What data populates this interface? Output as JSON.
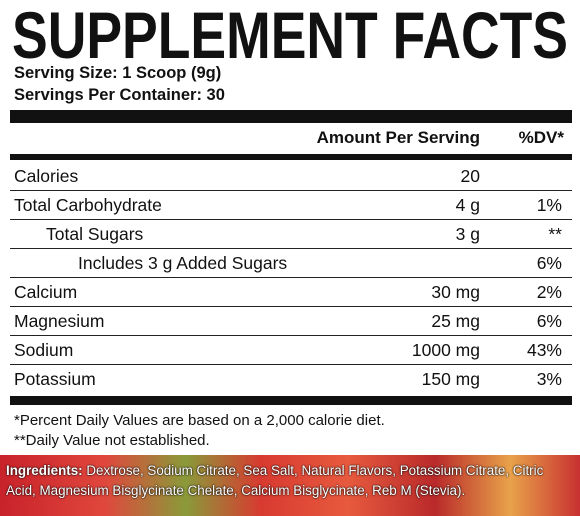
{
  "header": {
    "title": "SUPPLEMENT FACTS",
    "serving_size": "Serving Size: 1 Scoop (9g)",
    "servings_per_container": "Servings Per Container: 30"
  },
  "table": {
    "columns": [
      "Amount Per Serving",
      "%DV*"
    ],
    "rows": [
      {
        "name": "Calories",
        "amount": "20"
      },
      {
        "name": "Total Carbohydrate",
        "amount": "4 g",
        "dv": "1%"
      },
      {
        "name": "Total Sugars",
        "amount": "3 g",
        "dv": "**"
      },
      {
        "name": "Includes 3 g Added Sugars",
        "dv": "6%"
      },
      {
        "name": "Calcium",
        "amount": "30 mg",
        "dv": "2%"
      },
      {
        "name": "Magnesium",
        "amount": "25 mg",
        "dv": "6%"
      },
      {
        "name": "Sodium",
        "amount": "1000 mg",
        "dv": "43%"
      },
      {
        "name": "Potassium",
        "amount": "150 mg",
        "dv": "3%"
      }
    ]
  },
  "footnotes": [
    "*Percent Daily Values are based on a 2,000 calorie diet.",
    "**Daily Value not established."
  ],
  "ingredients": {
    "label": "Ingredients:",
    "text": "Dextrose, Sodium Citrate, Sea Salt, Natural Flavors, Potassium Citrate, Citric Acid, Magnesium Bisglycinate Chelate, Calcium Bisglycinate, Reb M (Stevia)."
  }
}
